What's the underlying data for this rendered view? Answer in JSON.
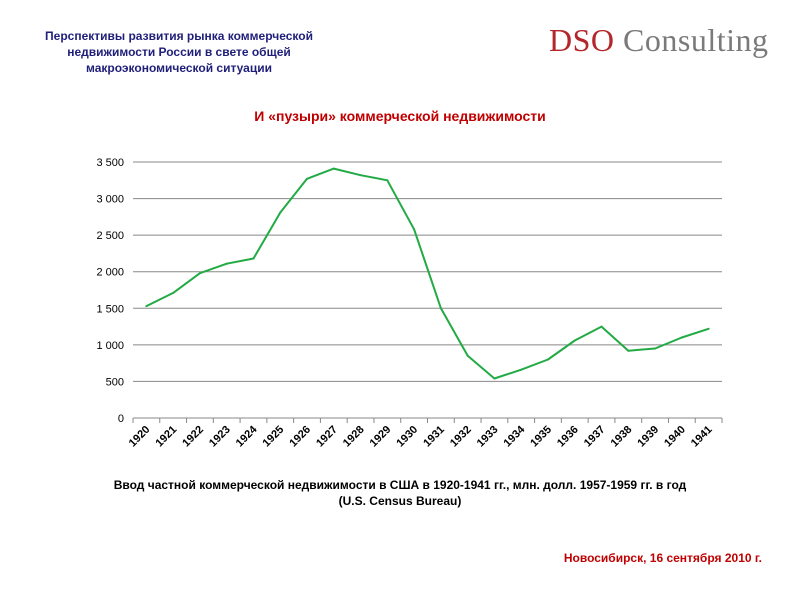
{
  "header": {
    "title_line1": "Перспективы развития рынка коммерческой",
    "title_line2": "недвижимости России в свете общей",
    "title_line3": "макроэкономической ситуации"
  },
  "logo": {
    "part1": "DSO",
    "part2": "Consulting",
    "color_part1": "#b3262a",
    "color_part2": "#7a7a7a"
  },
  "chart_data": {
    "type": "line",
    "title": "И «пузыри» коммерческой недвижимости",
    "categories": [
      "1920",
      "1921",
      "1922",
      "1923",
      "1924",
      "1925",
      "1926",
      "1927",
      "1928",
      "1929",
      "1930",
      "1931",
      "1932",
      "1933",
      "1934",
      "1935",
      "1936",
      "1937",
      "1938",
      "1939",
      "1940",
      "1941"
    ],
    "series": [
      {
        "name": "Ввод частной коммерческой недвижимости",
        "values": [
          1530,
          1710,
          1980,
          2110,
          2180,
          2810,
          3270,
          3410,
          3320,
          3250,
          2580,
          1500,
          850,
          540,
          660,
          800,
          1060,
          1250,
          920,
          950,
          1100,
          1220
        ],
        "color": "#22aa44"
      }
    ],
    "ylim": [
      0,
      3500
    ],
    "yticks": [
      0,
      500,
      1000,
      1500,
      2000,
      2500,
      3000,
      3500
    ],
    "ytick_labels": [
      "0",
      "500",
      "1 000",
      "1 500",
      "2 000",
      "2 500",
      "3 000",
      "3 500"
    ],
    "grid": true,
    "xlabel": "",
    "ylabel": ""
  },
  "caption": {
    "line1": "Ввод частной коммерческой недвижимости в США в 1920-1941 гг., млн. долл. 1957-1959 гг.  в год",
    "line2": "(U.S. Census Bureau)"
  },
  "footer": {
    "text": "Новосибирск, 16 сентября 2010 г."
  }
}
